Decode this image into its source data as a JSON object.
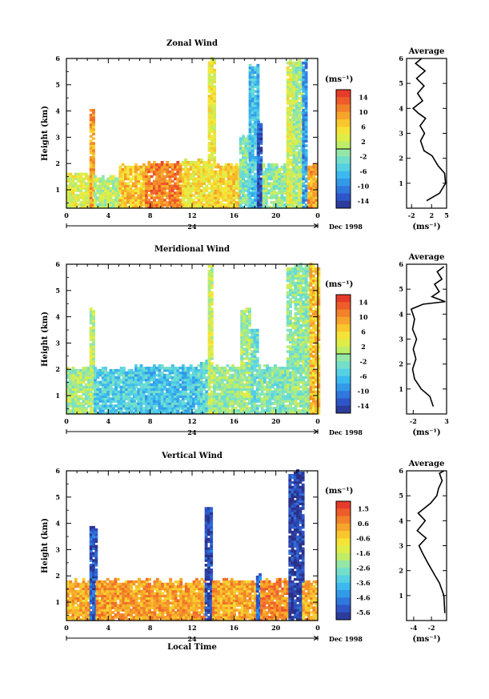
{
  "chart_data": [
    {
      "type": "heatmap",
      "title": "Zonal Wind",
      "ylabel": "Height (km)",
      "xticks": [
        "0",
        "4",
        "8",
        "12",
        "16",
        "20",
        "0"
      ],
      "yticks": [
        "1",
        "2",
        "3",
        "4",
        "5",
        "6"
      ],
      "xlim": [
        0,
        24
      ],
      "ylim": [
        0.3,
        6
      ],
      "date_bar": {
        "day": "24",
        "label": "Dec 1998"
      },
      "colorbar": {
        "unit": "(ms⁻¹)",
        "ticks": [
          "14",
          "10",
          "6",
          "2",
          "-2",
          "-6",
          "-10",
          "-14"
        ],
        "range": [
          -16,
          16
        ],
        "zero_line": true
      },
      "columns": [
        {
          "x0": 0,
          "x1": 2.2,
          "top": 1.6,
          "base": 3
        },
        {
          "x0": 2.2,
          "x1": 2.6,
          "top": 4.1,
          "base": 9
        },
        {
          "x0": 2.6,
          "x1": 5.0,
          "top": 1.5,
          "base": 1
        },
        {
          "x0": 5.0,
          "x1": 7.5,
          "top": 1.9,
          "base": 7
        },
        {
          "x0": 7.5,
          "x1": 11.0,
          "top": 2.0,
          "base": 11
        },
        {
          "x0": 11.0,
          "x1": 13.5,
          "top": 2.1,
          "base": 5
        },
        {
          "x0": 13.5,
          "x1": 14.1,
          "top": 5.9,
          "base": 4
        },
        {
          "x0": 14.1,
          "x1": 16.5,
          "top": 1.9,
          "base": 6
        },
        {
          "x0": 16.5,
          "x1": 17.4,
          "top": 3.0,
          "base": -2
        },
        {
          "x0": 17.4,
          "x1": 18.2,
          "top": 5.7,
          "base": -6
        },
        {
          "x0": 18.2,
          "x1": 18.7,
          "top": 3.5,
          "base": -13
        },
        {
          "x0": 18.7,
          "x1": 21.0,
          "top": 1.9,
          "base": -1
        },
        {
          "x0": 21.0,
          "x1": 21.6,
          "top": 5.9,
          "base": 3
        },
        {
          "x0": 21.6,
          "x1": 22.5,
          "top": 5.9,
          "base": 0
        },
        {
          "x0": 22.5,
          "x1": 23.0,
          "top": 5.9,
          "base": -9
        },
        {
          "x0": 23.0,
          "x1": 24.0,
          "top": 1.9,
          "base": 9
        }
      ],
      "profile": {
        "title": "Average",
        "xlabel": "(ms⁻¹)",
        "xticks": [
          "-2",
          "2",
          "5"
        ],
        "xlim": [
          -3,
          5
        ],
        "points": [
          [
            1.0,
            0.3
          ],
          [
            3.6,
            0.6
          ],
          [
            4.8,
            1.0
          ],
          [
            4.6,
            1.4
          ],
          [
            3.3,
            1.7
          ],
          [
            2.1,
            2.1
          ],
          [
            0.5,
            2.3
          ],
          [
            -0.2,
            2.7
          ],
          [
            0.6,
            3.0
          ],
          [
            -0.3,
            3.3
          ],
          [
            0.8,
            3.6
          ],
          [
            -0.6,
            3.8
          ],
          [
            -1.7,
            4.0
          ],
          [
            0.2,
            4.3
          ],
          [
            -0.8,
            4.6
          ],
          [
            0.5,
            4.9
          ],
          [
            -1.0,
            5.2
          ],
          [
            0.7,
            5.5
          ],
          [
            -1.2,
            5.8
          ],
          [
            0.0,
            6.0
          ]
        ]
      }
    },
    {
      "type": "heatmap",
      "title": "Meridional Wind",
      "ylabel": "Height (km)",
      "xticks": [
        "0",
        "4",
        "8",
        "12",
        "16",
        "20",
        "0"
      ],
      "yticks": [
        "1",
        "2",
        "3",
        "4",
        "5",
        "6"
      ],
      "xlim": [
        0,
        24
      ],
      "ylim": [
        0.3,
        6
      ],
      "date_bar": {
        "day": "24",
        "label": "Dec 1998"
      },
      "colorbar": {
        "unit": "(ms⁻¹)",
        "ticks": [
          "14",
          "10",
          "6",
          "2",
          "-2",
          "-6",
          "-10",
          "-14"
        ],
        "range": [
          -16,
          16
        ],
        "zero_line": true
      },
      "columns": [
        {
          "x0": 0,
          "x1": 2.2,
          "top": 2.0,
          "base": 0
        },
        {
          "x0": 2.2,
          "x1": 2.6,
          "top": 4.3,
          "base": 1
        },
        {
          "x0": 2.6,
          "x1": 6.5,
          "top": 2.0,
          "base": -5
        },
        {
          "x0": 6.5,
          "x1": 12.5,
          "top": 2.1,
          "base": -6
        },
        {
          "x0": 12.5,
          "x1": 13.5,
          "top": 2.2,
          "base": -4
        },
        {
          "x0": 13.5,
          "x1": 14.0,
          "top": 5.9,
          "base": 2
        },
        {
          "x0": 14.0,
          "x1": 16.6,
          "top": 2.1,
          "base": -1
        },
        {
          "x0": 16.6,
          "x1": 17.6,
          "top": 4.2,
          "base": 0
        },
        {
          "x0": 17.6,
          "x1": 18.3,
          "top": 3.5,
          "base": -3
        },
        {
          "x0": 18.3,
          "x1": 21.0,
          "top": 2.1,
          "base": -2
        },
        {
          "x0": 21.0,
          "x1": 23.2,
          "top": 5.9,
          "base": -1
        },
        {
          "x0": 23.2,
          "x1": 24.0,
          "top": 5.9,
          "base": 7
        }
      ],
      "profile": {
        "title": "Average",
        "xlabel": "(ms⁻¹)",
        "xticks": [
          "-2",
          "3"
        ],
        "xlim": [
          -3,
          3
        ],
        "points": [
          [
            1.0,
            0.3
          ],
          [
            0.5,
            0.7
          ],
          [
            -0.8,
            1.0
          ],
          [
            -1.8,
            1.4
          ],
          [
            -2.1,
            1.8
          ],
          [
            -1.6,
            2.2
          ],
          [
            -2.0,
            2.6
          ],
          [
            -1.5,
            3.0
          ],
          [
            -2.1,
            3.4
          ],
          [
            -1.8,
            3.8
          ],
          [
            -2.3,
            4.2
          ],
          [
            -0.5,
            4.4
          ],
          [
            2.8,
            4.5
          ],
          [
            0.8,
            4.7
          ],
          [
            1.9,
            4.9
          ],
          [
            1.2,
            5.2
          ],
          [
            2.3,
            5.4
          ],
          [
            1.6,
            5.7
          ],
          [
            2.6,
            5.9
          ]
        ]
      }
    },
    {
      "type": "heatmap",
      "title": "Vertical Wind",
      "ylabel": "Height (km)",
      "xlabel": "Local Time",
      "xticks": [
        "0",
        "4",
        "8",
        "12",
        "16",
        "20",
        "0"
      ],
      "yticks": [
        "1",
        "2",
        "3",
        "4",
        "5",
        "6"
      ],
      "xlim": [
        0,
        24
      ],
      "ylim": [
        0.3,
        6
      ],
      "date_bar": {
        "day": "24",
        "label": "Dec 1998"
      },
      "colorbar": {
        "unit": "(ms⁻¹)",
        "ticks": [
          "1.5",
          "0.6",
          "-0.6",
          "-1.6",
          "-2.6",
          "-3.6",
          "-4.6",
          "-5.6"
        ],
        "range": [
          -6,
          2
        ],
        "zero_line": false
      },
      "columns": [
        {
          "x0": 0,
          "x1": 2.2,
          "top": 1.8,
          "base": 0.2
        },
        {
          "x0": 2.2,
          "x1": 2.8,
          "top": 3.8,
          "base": -5.2
        },
        {
          "x0": 2.8,
          "x1": 13.2,
          "top": 1.8,
          "base": 0.3
        },
        {
          "x0": 13.2,
          "x1": 13.9,
          "top": 4.5,
          "base": -5.5
        },
        {
          "x0": 13.9,
          "x1": 18.1,
          "top": 1.8,
          "base": 0.2
        },
        {
          "x0": 18.1,
          "x1": 18.5,
          "top": 2.0,
          "base": -5.0
        },
        {
          "x0": 18.5,
          "x1": 21.2,
          "top": 1.8,
          "base": 0.6
        },
        {
          "x0": 21.2,
          "x1": 22.5,
          "top": 5.9,
          "base": -5.6
        },
        {
          "x0": 22.5,
          "x1": 24.0,
          "top": 1.8,
          "base": 0.1
        }
      ],
      "profile": {
        "title": "Average",
        "xlabel": "(ms⁻¹)",
        "xticks": [
          "-4",
          "-2"
        ],
        "xlim": [
          -4.8,
          -0.3
        ],
        "points": [
          [
            -0.5,
            0.3
          ],
          [
            -0.6,
            1.0
          ],
          [
            -1.1,
            1.5
          ],
          [
            -1.6,
            1.8
          ],
          [
            -2.4,
            2.3
          ],
          [
            -3.0,
            2.7
          ],
          [
            -3.4,
            3.0
          ],
          [
            -2.6,
            3.3
          ],
          [
            -3.6,
            3.6
          ],
          [
            -2.7,
            4.0
          ],
          [
            -3.5,
            4.3
          ],
          [
            -2.1,
            4.7
          ],
          [
            -1.4,
            5.0
          ],
          [
            -1.2,
            5.3
          ],
          [
            -0.8,
            5.6
          ],
          [
            -1.1,
            5.9
          ],
          [
            -0.6,
            6.0
          ]
        ]
      }
    }
  ]
}
